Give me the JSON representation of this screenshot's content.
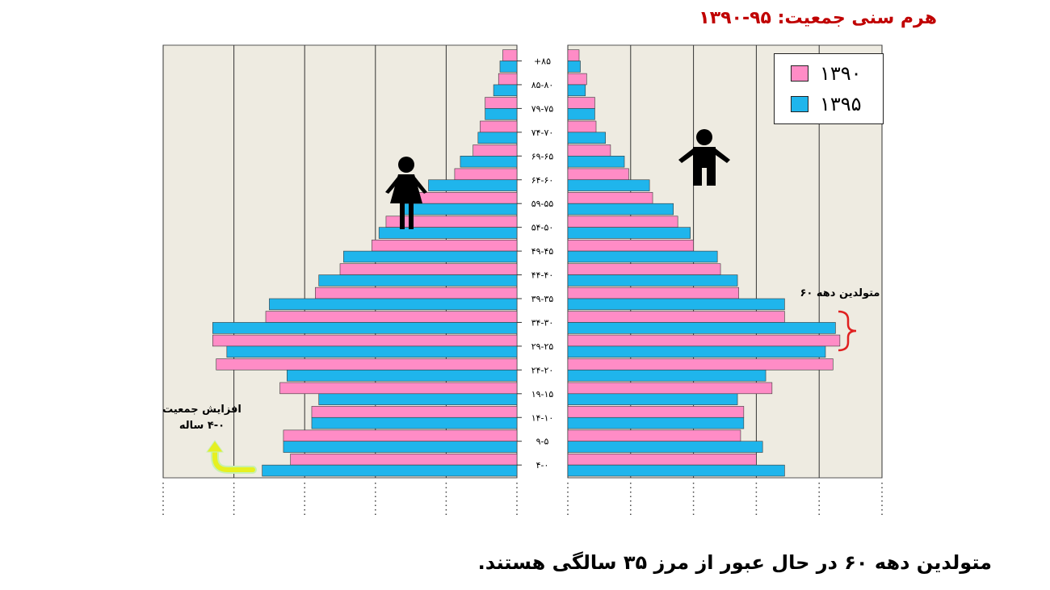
{
  "title": "هرم سنی جمعیت: ۹۵-۱۳۹۰",
  "footer": "متولدین دهه ۶۰ در حال عبور از مرز ۳۵ سالگی هستند.",
  "annotations": {
    "sixties_born": "متولدین دهه ۶۰",
    "increase_line1": "افزایش جمعیت",
    "increase_line2": "۴-۰ ساله"
  },
  "colors": {
    "y1390": "#ff8cc6",
    "y1395": "#1fb5ec",
    "panel": "#eeebe1",
    "bracket": "#e02020",
    "arrow": "#e6f020"
  },
  "icons": {
    "female": "female-figure-icon",
    "male": "male-figure-icon",
    "arrow": "curved-arrow-icon"
  },
  "chart_data": {
    "type": "bar",
    "orientation": "horizontal-population-pyramid",
    "categories": [
      "۴-۰",
      "۹-۵",
      "۱۴-۱۰",
      "۱۹-۱۵",
      "۲۴-۲۰",
      "۲۹-۲۵",
      "۳۴-۳۰",
      "۳۹-۳۵",
      "۴۴-۴۰",
      "۴۹-۴۵",
      "۵۴-۵۰",
      "۵۹-۵۵",
      "۶۴-۶۰",
      "۶۹-۶۵",
      "۷۴-۷۰",
      "۷۹-۷۵",
      "۸۵-۸۰",
      "+۸۵"
    ],
    "left_panel": {
      "xlim": [
        0,
        5
      ],
      "series": [
        {
          "name": "۱۳۹۰",
          "values": [
            3.2,
            3.3,
            2.9,
            3.35,
            4.25,
            4.3,
            3.55,
            2.85,
            2.5,
            2.05,
            1.85,
            1.65,
            0.88,
            0.62,
            0.52,
            0.45,
            0.26,
            0.2
          ]
        },
        {
          "name": "۱۳۹۵",
          "values": [
            3.6,
            3.3,
            2.9,
            2.8,
            3.25,
            4.1,
            4.3,
            3.5,
            2.8,
            2.45,
            1.95,
            1.65,
            1.25,
            0.8,
            0.55,
            0.45,
            0.33,
            0.24
          ]
        }
      ]
    },
    "right_panel": {
      "xlim": [
        0,
        5
      ],
      "series": [
        {
          "name": "۱۳۹۰",
          "values": [
            3.0,
            2.75,
            2.8,
            3.25,
            4.22,
            4.33,
            3.45,
            2.72,
            2.43,
            2.0,
            1.75,
            1.35,
            0.97,
            0.68,
            0.45,
            0.43,
            0.3,
            0.18
          ]
        },
        {
          "name": "۱۳۹۵",
          "values": [
            3.45,
            3.1,
            2.8,
            2.7,
            3.15,
            4.1,
            4.26,
            3.45,
            2.7,
            2.38,
            1.95,
            1.68,
            1.3,
            0.9,
            0.6,
            0.43,
            0.28,
            0.2
          ]
        }
      ]
    },
    "legend": [
      "۱۳۹۰",
      "۱۳۹۵"
    ],
    "legend_position": "top-right",
    "grid": true
  }
}
